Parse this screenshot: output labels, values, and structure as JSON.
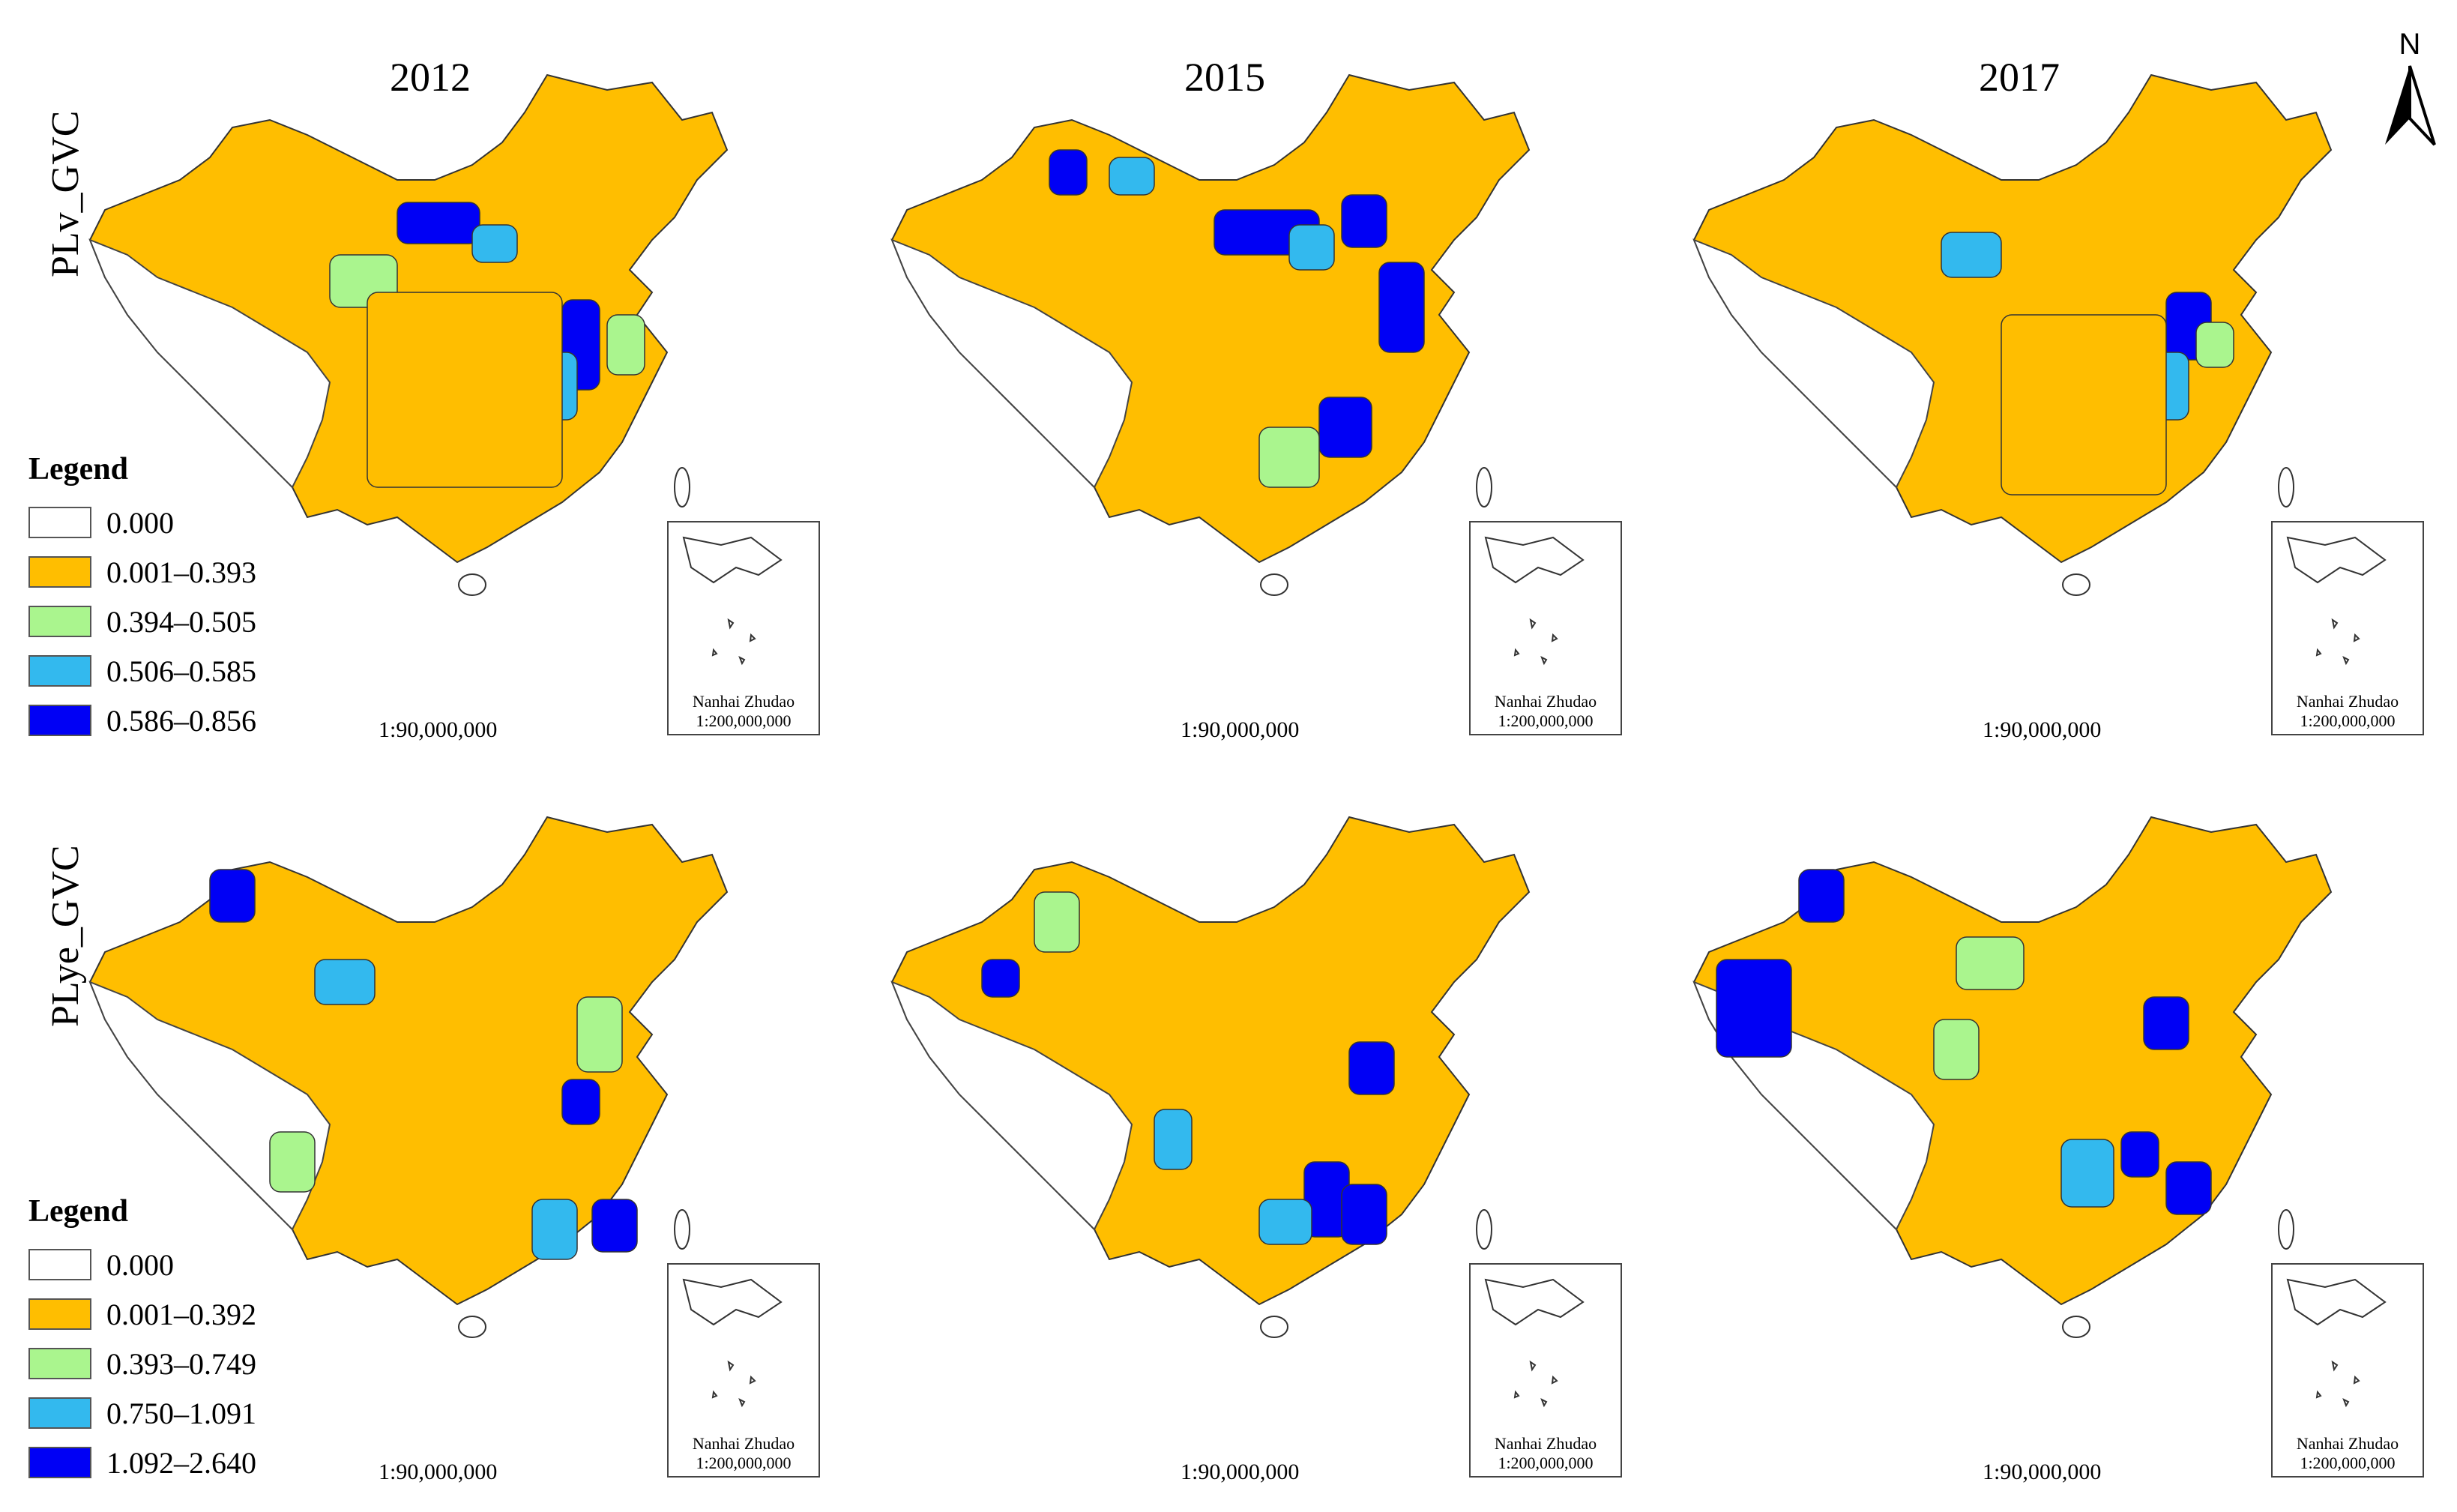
{
  "years": [
    "2012",
    "2015",
    "2017"
  ],
  "rows": [
    {
      "label": "PLv_GVC",
      "legend": {
        "title": "Legend",
        "items": [
          {
            "label": "0.000",
            "color": "#ffffff"
          },
          {
            "label": "0.001–0.393",
            "color": "#ffbe00"
          },
          {
            "label": "0.394–0.505",
            "color": "#aaf58e"
          },
          {
            "label": "0.506–0.585",
            "color": "#33b9ee"
          },
          {
            "label": "0.586–0.856",
            "color": "#0000f5"
          }
        ]
      }
    },
    {
      "label": "PLye_GVC",
      "legend": {
        "title": "Legend",
        "items": [
          {
            "label": "0.000",
            "color": "#ffffff"
          },
          {
            "label": "0.001–0.392",
            "color": "#ffbe00"
          },
          {
            "label": "0.393–0.749",
            "color": "#aaf58e"
          },
          {
            "label": "0.750–1.091",
            "color": "#33b9ee"
          },
          {
            "label": "1.092–2.640",
            "color": "#0000f5"
          }
        ]
      }
    }
  ],
  "scale_text": "1:90,000,000",
  "inset": {
    "name": "Nanhai Zhudao",
    "scale": "1:200,000,000"
  },
  "north_label": "N"
}
